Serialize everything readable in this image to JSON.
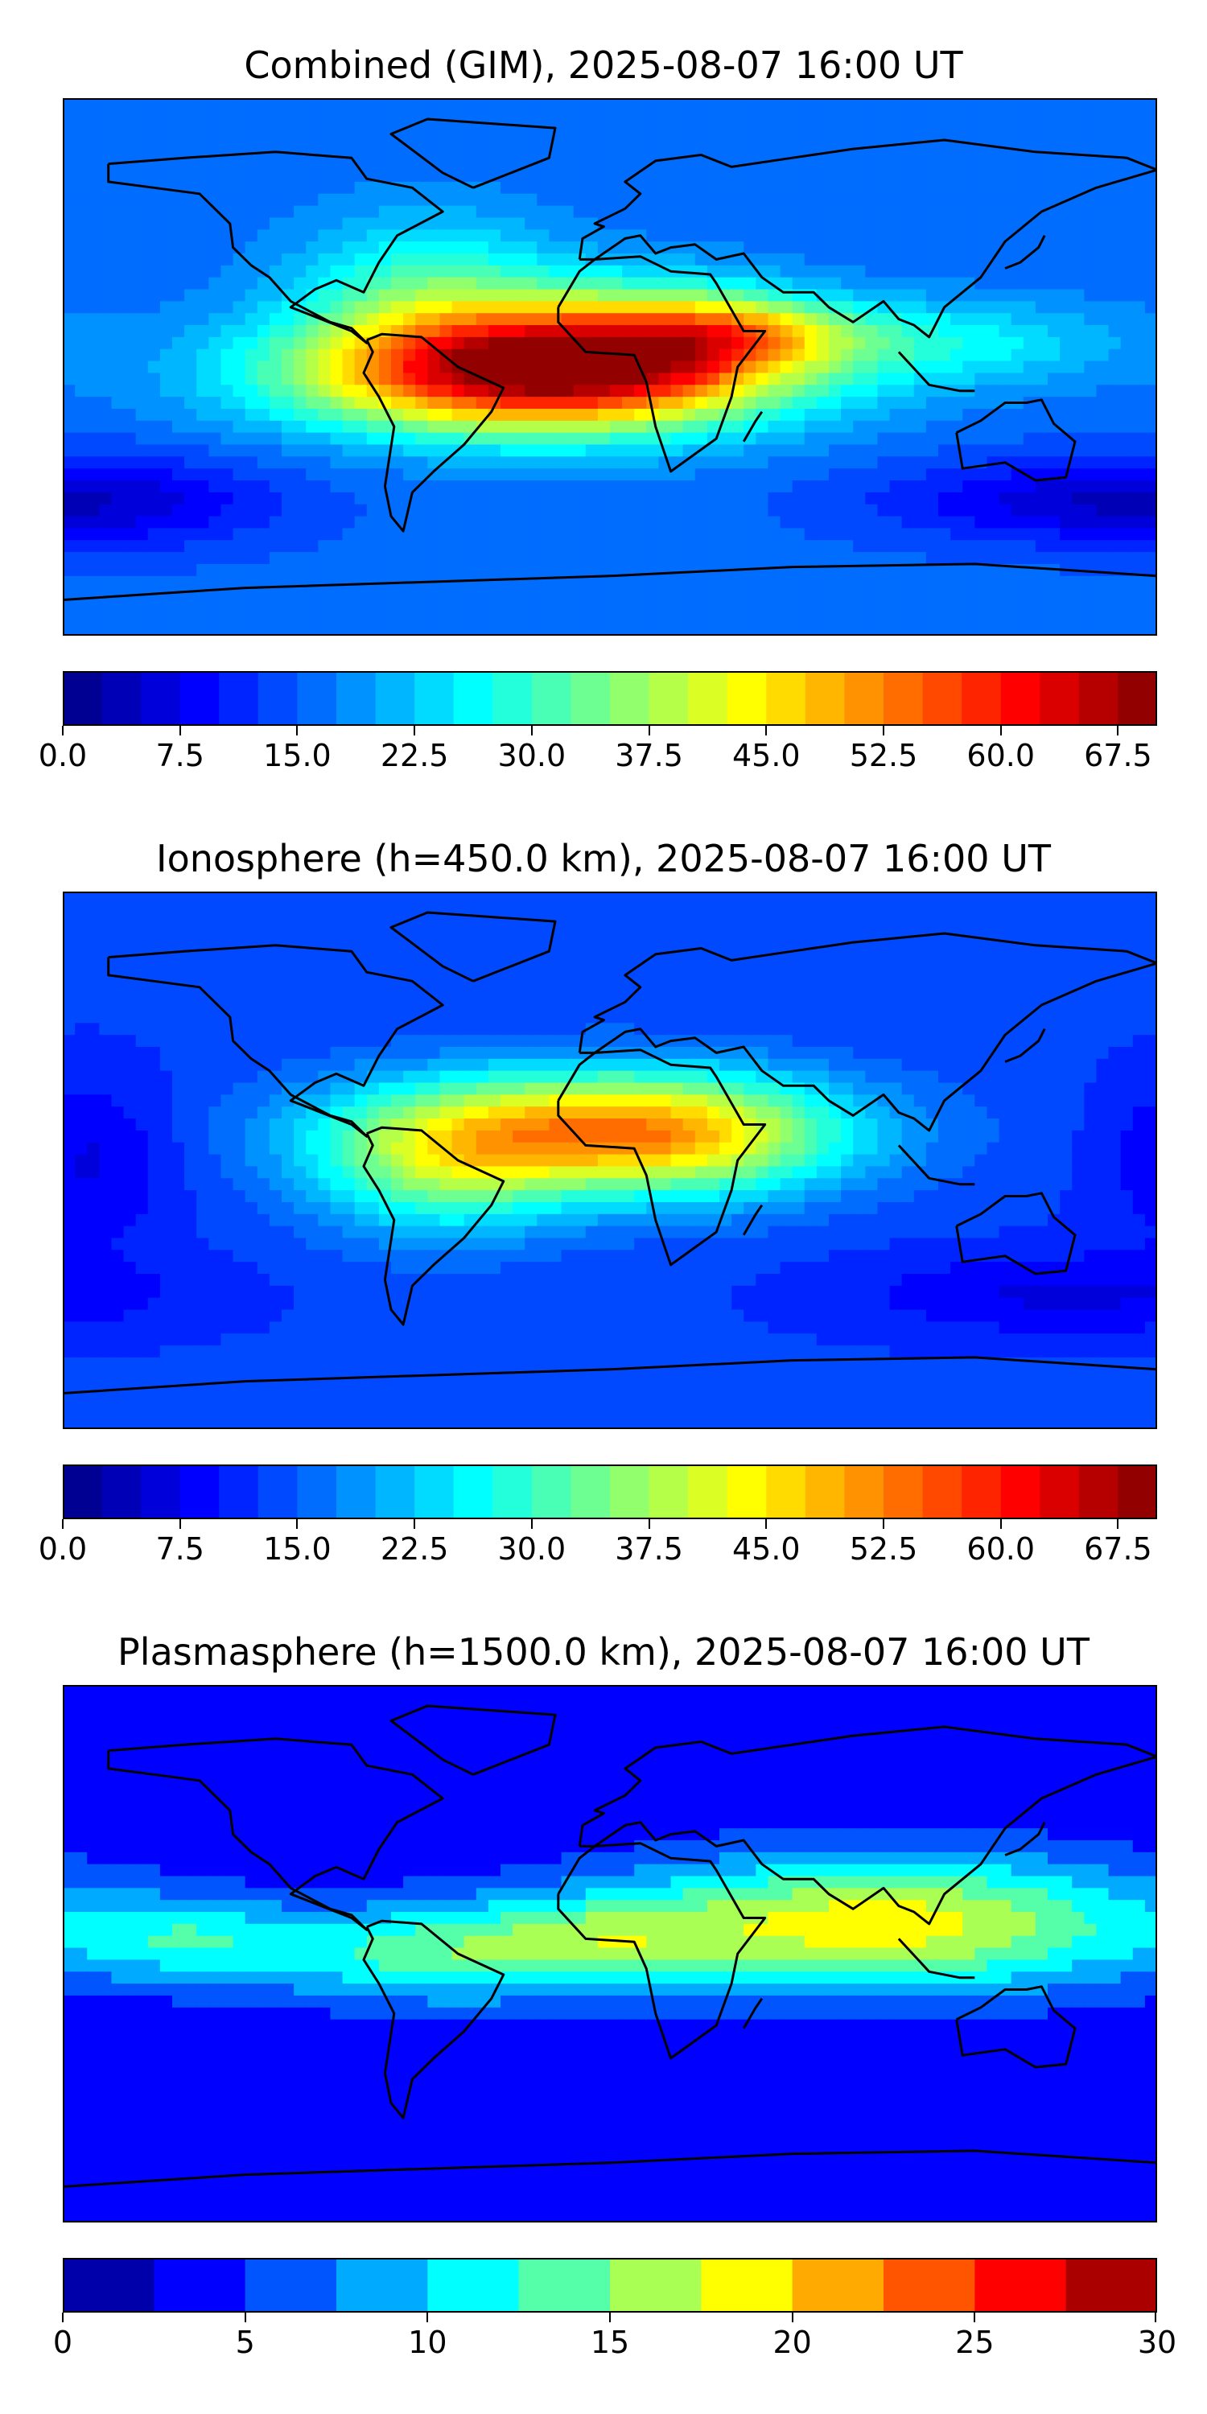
{
  "panels": [
    {
      "title": "Combined (GIM), 2025-08-07 16:00 UT",
      "colorbar": {
        "min": 0,
        "max": 70,
        "step": 2.5,
        "tick_labels": [
          "0.0",
          "7.5",
          "15.0",
          "22.5",
          "30.0",
          "37.5",
          "45.0",
          "52.5",
          "60.0",
          "67.5"
        ],
        "tick_values": [
          0,
          7.5,
          15,
          22.5,
          30,
          37.5,
          45,
          52.5,
          60,
          67.5
        ]
      },
      "field": {
        "base": 16,
        "features": [
          {
            "lon": -25,
            "lat": -2,
            "amp": 50,
            "slon": 55,
            "slat": 14
          },
          {
            "lon": 10,
            "lat": 10,
            "amp": 18,
            "slon": 35,
            "slat": 14
          },
          {
            "lon": 45,
            "lat": 12,
            "amp": 14,
            "slon": 25,
            "slat": 8
          },
          {
            "lon": 110,
            "lat": 8,
            "amp": 10,
            "slon": 40,
            "slat": 10
          },
          {
            "lon": -60,
            "lat": 25,
            "amp": 14,
            "slon": 30,
            "slat": 18
          },
          {
            "lon": 150,
            "lat": -45,
            "amp": -8,
            "slon": 50,
            "slat": 10
          },
          {
            "lon": -160,
            "lat": -45,
            "amp": -6,
            "slon": 40,
            "slat": 12
          }
        ]
      }
    },
    {
      "title": "Ionosphere  (h=450.0 km), 2025-08-07 16:00 UT",
      "colorbar": {
        "min": 0,
        "max": 70,
        "step": 2.5,
        "tick_labels": [
          "0.0",
          "7.5",
          "15.0",
          "22.5",
          "30.0",
          "37.5",
          "45.0",
          "52.5",
          "60.0",
          "67.5"
        ],
        "tick_values": [
          0,
          7.5,
          15,
          22.5,
          30,
          37.5,
          45,
          52.5,
          60,
          67.5
        ]
      },
      "field": {
        "base": 13,
        "features": [
          {
            "lon": -5,
            "lat": 10,
            "amp": 35,
            "slon": 55,
            "slat": 14
          },
          {
            "lon": -55,
            "lat": -5,
            "amp": 15,
            "slon": 30,
            "slat": 16
          },
          {
            "lon": 30,
            "lat": 5,
            "amp": 8,
            "slon": 30,
            "slat": 15
          },
          {
            "lon": -170,
            "lat": 0,
            "amp": -6,
            "slon": 20,
            "slat": 20
          },
          {
            "lon": 150,
            "lat": -45,
            "amp": -6,
            "slon": 50,
            "slat": 10
          }
        ]
      }
    },
    {
      "title": "Plasmasphere (h=1500.0 km), 2025-08-07 16:00 UT",
      "colorbar": {
        "min": 0,
        "max": 30,
        "step": 2.5,
        "tick_labels": [
          "0",
          "5",
          "10",
          "15",
          "20",
          "25",
          "30"
        ],
        "tick_values": [
          0,
          5,
          10,
          15,
          20,
          25,
          30
        ]
      },
      "field": {
        "base": 3,
        "features": [
          {
            "lon": 90,
            "lat": 10,
            "amp": 16,
            "slon": 65,
            "slat": 16
          },
          {
            "lon": -60,
            "lat": 0,
            "amp": 10,
            "slon": 45,
            "slat": 12
          },
          {
            "lon": -140,
            "lat": 5,
            "amp": 6,
            "slon": 25,
            "slat": 10
          },
          {
            "lon": 0,
            "lat": 5,
            "amp": 5,
            "slon": 30,
            "slat": 10
          }
        ]
      }
    }
  ]
}
